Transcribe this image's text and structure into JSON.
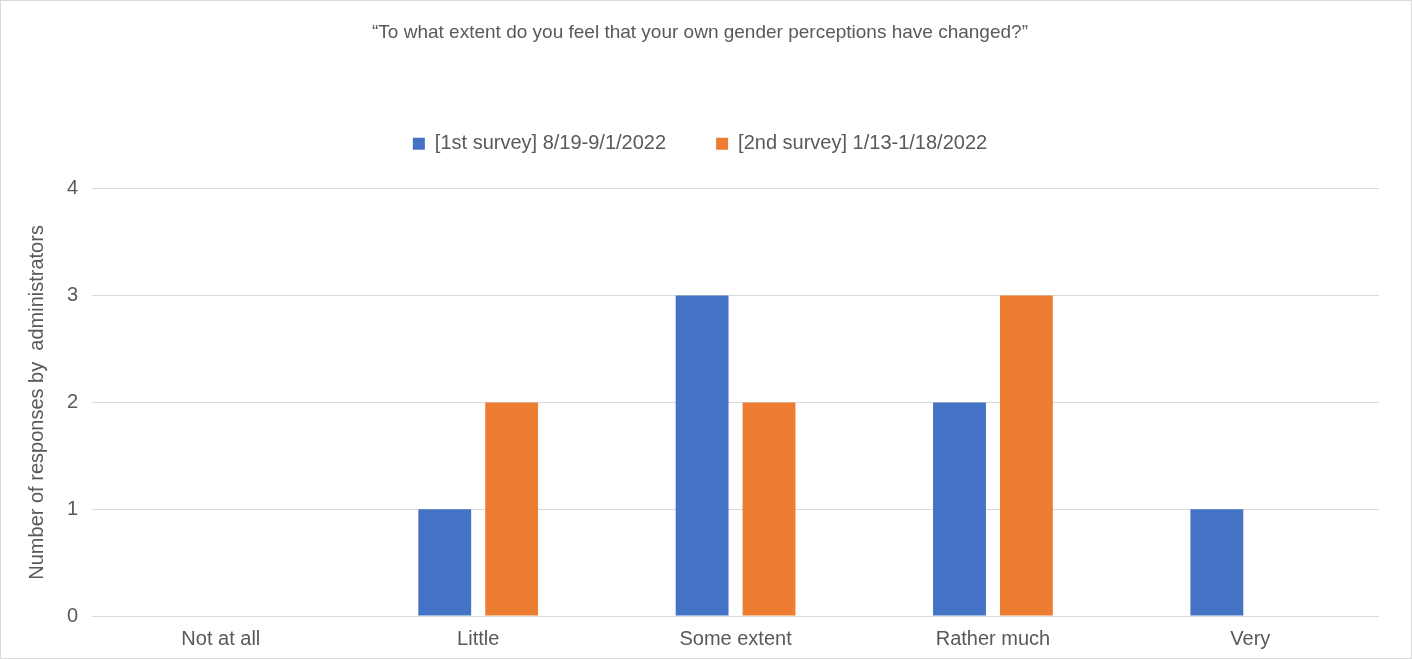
{
  "chart_data": {
    "type": "bar",
    "title": "“To what extent do you feel that your own gender perceptions have changed?”",
    "ylabel": "Number of responses by  administrators",
    "categories": [
      "Not at all",
      "Little",
      "Some extent",
      "Rather much",
      "Very"
    ],
    "series": [
      {
        "name": "[1st survey] 8/19-9/1/2022",
        "color": "#4472c4",
        "values": [
          0,
          1,
          3,
          2,
          1
        ]
      },
      {
        "name": "[2nd survey] 1/13-1/18/2022",
        "color": "#ed7d31",
        "values": [
          0,
          2,
          2,
          3,
          0
        ]
      }
    ],
    "ylim": [
      0,
      4
    ],
    "yticks": [
      0,
      1,
      2,
      3,
      4
    ],
    "grid": "y",
    "legend": "top"
  }
}
